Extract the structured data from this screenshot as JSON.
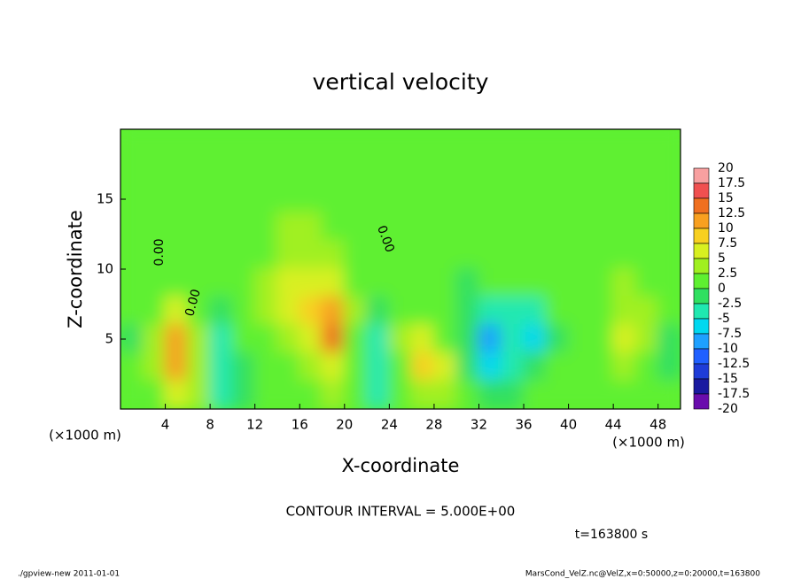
{
  "chart_data": {
    "type": "contour",
    "title": "vertical velocity",
    "x_label": "X-coordinate",
    "y_label": "Z-coordinate",
    "x_unit": "(×1000 m)",
    "y_unit": "(×1000 m)",
    "xlim": [
      0,
      50
    ],
    "ylim": [
      0,
      20
    ],
    "xticks": [
      4,
      8,
      12,
      16,
      20,
      24,
      28,
      32,
      36,
      40,
      44,
      48
    ],
    "yticks": [
      5,
      10,
      15
    ],
    "contour_label": "0.00",
    "contour_interval": "CONTOUR INTERVAL = 5.000E+00",
    "time_label": "t=163800 s",
    "footer_left": "./gpview-new  2011-01-01",
    "footer_right": "MarsCond_VelZ.nc@VelZ,x=0:50000,z=0:20000,t=163800",
    "colorbar_ticks": [
      20,
      17.5,
      15,
      12.5,
      10,
      7.5,
      5,
      2.5,
      0,
      -2.5,
      -5,
      -7.5,
      -10,
      -12.5,
      -15,
      -17.5,
      -20
    ],
    "colorbar_colors": [
      "#f8a0a0",
      "#f05050",
      "#f07020",
      "#f8a020",
      "#f8d020",
      "#d8f020",
      "#a0f020",
      "#5ef030",
      "#30e060",
      "#20e8b0",
      "#00d8f0",
      "#1ea0ff",
      "#2060ff",
      "#1e3cd8",
      "#1a1aa0",
      "#6a0dad"
    ],
    "grid": {
      "x": [
        1,
        3,
        5,
        7,
        9,
        11,
        13,
        15,
        17,
        19,
        21,
        23,
        25,
        27,
        29,
        31,
        33,
        35,
        37,
        39,
        41,
        43,
        45,
        47,
        49
      ],
      "z": [
        19,
        17,
        15,
        13,
        11,
        9,
        7,
        5,
        3,
        1
      ],
      "values": [
        [
          1,
          1,
          1,
          1,
          1,
          1,
          1,
          1,
          1,
          1,
          1,
          1,
          1,
          1,
          1,
          1,
          1,
          1,
          1,
          1,
          1,
          1,
          1,
          1,
          1
        ],
        [
          1,
          1,
          1,
          1,
          1,
          1,
          1,
          1,
          1,
          1,
          1,
          1,
          0,
          1,
          1,
          1,
          0,
          0,
          1,
          1,
          1,
          1,
          1,
          1,
          1
        ],
        [
          1,
          1,
          1,
          1,
          1,
          1,
          1,
          2,
          2,
          2,
          1,
          1,
          1,
          1,
          1,
          1,
          1,
          1,
          1,
          1,
          1,
          1,
          1,
          1,
          1
        ],
        [
          1,
          1,
          1,
          1,
          1,
          1,
          2,
          3,
          3,
          2,
          1,
          1,
          0,
          0,
          1,
          1,
          1,
          1,
          1,
          1,
          1,
          1,
          1,
          1,
          1
        ],
        [
          1,
          1,
          2,
          2,
          1,
          1,
          2,
          4,
          4,
          3,
          2,
          1,
          0,
          0,
          0,
          0,
          0,
          0,
          0,
          0,
          1,
          1,
          2,
          1,
          1
        ],
        [
          1,
          1,
          2,
          1,
          0,
          1,
          3,
          5,
          6,
          5,
          2,
          1,
          0,
          0,
          0,
          -1,
          0,
          0,
          0,
          0,
          1,
          2,
          3,
          2,
          1
        ],
        [
          0,
          2,
          5,
          2,
          -1,
          1,
          3,
          5,
          9,
          12,
          3,
          -1,
          1,
          1,
          0,
          -1,
          -3,
          -3,
          -4,
          0,
          0,
          1,
          4,
          3,
          1
        ],
        [
          -2,
          4,
          10,
          3,
          -3,
          0,
          2,
          4,
          7,
          13,
          2,
          -3,
          3,
          6,
          1,
          -2,
          -8,
          -5,
          -6,
          -1,
          1,
          2,
          5,
          3,
          -1
        ],
        [
          0,
          4,
          12,
          4,
          -4,
          -2,
          1,
          2,
          4,
          6,
          1,
          -5,
          2,
          9,
          7,
          -1,
          -7,
          -3,
          -2,
          1,
          1,
          2,
          4,
          2,
          -2
        ],
        [
          1,
          2,
          6,
          3,
          -3,
          -2,
          1,
          0,
          2,
          3,
          0,
          -3,
          1,
          4,
          3,
          0,
          -2,
          -1,
          0,
          1,
          1,
          1,
          2,
          1,
          0
        ]
      ]
    }
  }
}
